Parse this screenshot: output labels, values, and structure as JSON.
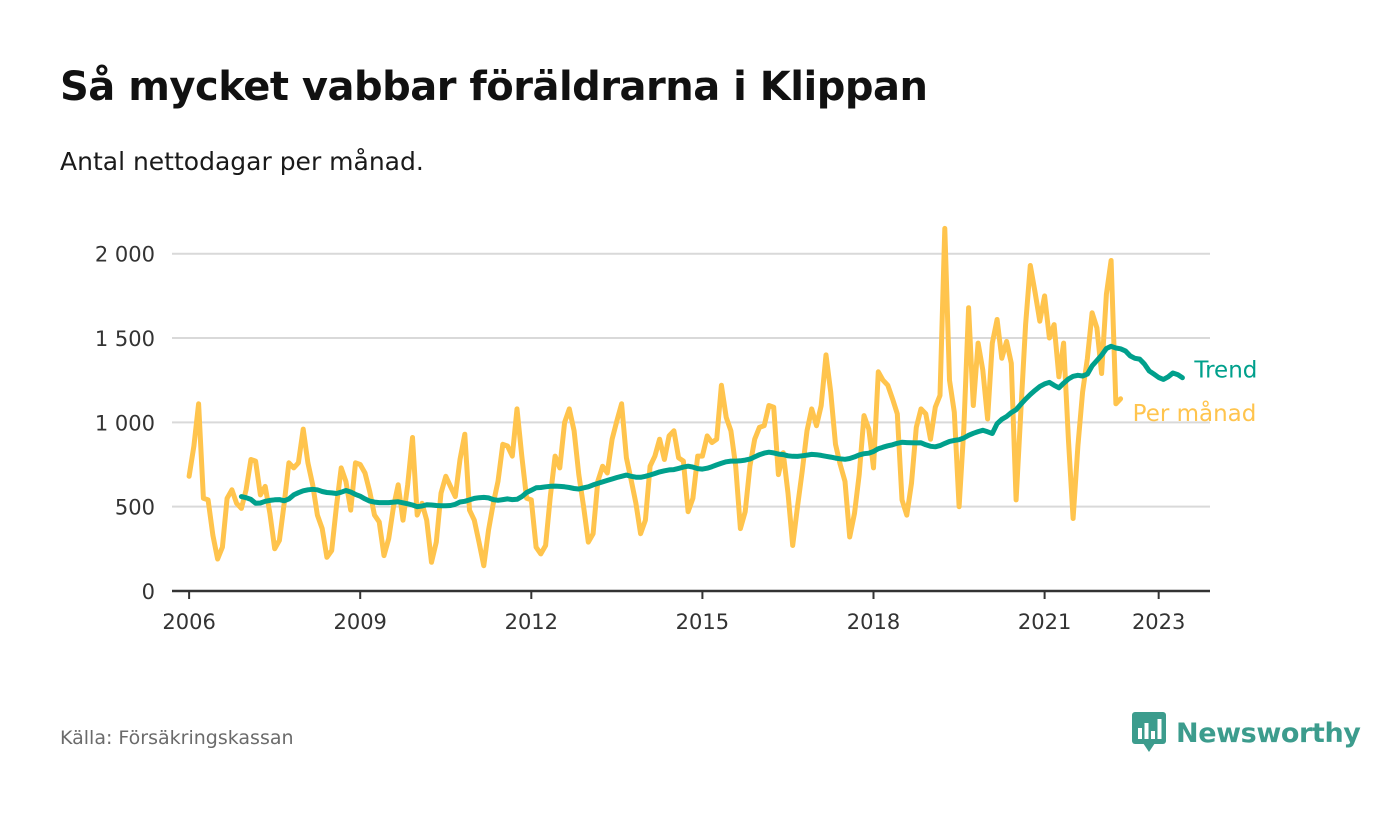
{
  "title": "Så mycket vabbar föräldrarna i Klippan",
  "subtitle": "Antal nettodagar per månad.",
  "source": "Källa: Försäkringskassan",
  "logo_text": "Newsworthy",
  "colors": {
    "monthly": "#ffc44d",
    "trend": "#00a08c",
    "grid": "#d9d9d9",
    "axis": "#333333",
    "logo": "#3c9c8d",
    "tick_text": "#333333"
  },
  "chart_data": {
    "type": "line",
    "x_unit": "year (decimal, monthly points)",
    "ylim": [
      0,
      2200
    ],
    "yticks": [
      0,
      500,
      1000,
      1500,
      2000
    ],
    "ytick_labels": [
      "0",
      "500",
      "1 000",
      "1 500",
      "2 000"
    ],
    "xticks": [
      2006,
      2009,
      2012,
      2015,
      2018,
      2021,
      2023
    ],
    "xtick_labels": [
      "2006",
      "2009",
      "2012",
      "2015",
      "2018",
      "2021",
      "2023"
    ],
    "grid": "horizontal",
    "series": [
      {
        "name": "Per månad",
        "color": "#ffc44d",
        "x_start": 2006.0,
        "x_step": 0.083333,
        "values": [
          680,
          860,
          1110,
          550,
          540,
          330,
          190,
          260,
          550,
          600,
          520,
          490,
          600,
          780,
          770,
          570,
          620,
          460,
          250,
          300,
          520,
          760,
          730,
          760,
          960,
          760,
          630,
          450,
          370,
          200,
          240,
          500,
          730,
          650,
          480,
          760,
          750,
          700,
          590,
          450,
          410,
          210,
          310,
          500,
          630,
          420,
          630,
          910,
          450,
          520,
          420,
          170,
          290,
          580,
          680,
          620,
          560,
          780,
          930,
          480,
          420,
          290,
          150,
          360,
          520,
          650,
          870,
          860,
          800,
          1080,
          800,
          550,
          540,
          260,
          220,
          270,
          560,
          800,
          730,
          1000,
          1080,
          950,
          690,
          500,
          290,
          340,
          650,
          740,
          700,
          900,
          1010,
          1110,
          790,
          660,
          520,
          340,
          420,
          740,
          800,
          900,
          780,
          920,
          950,
          790,
          770,
          470,
          550,
          800,
          800,
          920,
          880,
          900,
          1220,
          1030,
          950,
          740,
          370,
          470,
          740,
          900,
          970,
          980,
          1100,
          1090,
          690,
          820,
          580,
          270,
          500,
          710,
          950,
          1080,
          980,
          1100,
          1400,
          1180,
          870,
          750,
          650,
          320,
          460,
          690,
          1040,
          960,
          730,
          1300,
          1250,
          1220,
          1140,
          1050,
          540,
          450,
          640,
          970,
          1080,
          1050,
          900,
          1090,
          1160,
          2150,
          1250,
          1060,
          500,
          960,
          1680,
          1100,
          1470,
          1310,
          1020,
          1470,
          1610,
          1380,
          1480,
          1350,
          540,
          1060,
          1580,
          1930,
          1770,
          1600,
          1750,
          1500,
          1580,
          1270,
          1470,
          900,
          430,
          860,
          1180,
          1380,
          1650,
          1560,
          1290,
          1760,
          1960,
          1110,
          1140
        ]
      },
      {
        "name": "Trend",
        "color": "#00a08c",
        "x_start": 2006.9167,
        "x_step": 0.083333,
        "values": [
          560,
          553,
          543,
          520,
          522,
          532,
          537,
          541,
          542,
          535,
          546,
          570,
          583,
          594,
          600,
          603,
          600,
          590,
          584,
          582,
          578,
          586,
          596,
          587,
          573,
          562,
          546,
          533,
          527,
          524,
          524,
          524,
          527,
          529,
          523,
          517,
          510,
          500,
          504,
          511,
          510,
          507,
          506,
          505,
          507,
          514,
          528,
          532,
          540,
          549,
          553,
          555,
          552,
          542,
          538,
          542,
          546,
          542,
          544,
          560,
          584,
          598,
          612,
          614,
          618,
          621,
          622,
          620,
          618,
          614,
          608,
          605,
          612,
          618,
          629,
          638,
          647,
          656,
          664,
          673,
          680,
          687,
          680,
          675,
          674,
          680,
          688,
          697,
          706,
          713,
          718,
          720,
          727,
          735,
          740,
          735,
          726,
          723,
          728,
          737,
          748,
          757,
          766,
          770,
          770,
          772,
          776,
          782,
          795,
          808,
          818,
          823,
          819,
          812,
          809,
          802,
          799,
          798,
          802,
          806,
          810,
          808,
          804,
          799,
          794,
          788,
          784,
          781,
          786,
          795,
          807,
          814,
          817,
          827,
          844,
          853,
          861,
          867,
          876,
          882,
          880,
          879,
          878,
          879,
          867,
          858,
          855,
          862,
          875,
          887,
          893,
          897,
          907,
          923,
          935,
          945,
          953,
          944,
          934,
          992,
          1018,
          1035,
          1058,
          1075,
          1107,
          1138,
          1165,
          1190,
          1213,
          1228,
          1237,
          1220,
          1205,
          1232,
          1257,
          1273,
          1279,
          1275,
          1286,
          1335,
          1367,
          1398,
          1438,
          1451,
          1441,
          1436,
          1424,
          1394,
          1380,
          1375,
          1346,
          1305,
          1286,
          1266,
          1255,
          1270,
          1293,
          1283,
          1265
        ]
      }
    ],
    "legend": "labels at line ends, right"
  }
}
